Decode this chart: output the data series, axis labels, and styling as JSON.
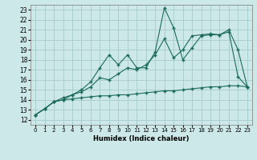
{
  "bg_color": "#cde8e8",
  "grid_color": "#aacece",
  "line_color": "#1a6b5a",
  "xlabel": "Humidex (Indice chaleur)",
  "xlim": [
    -0.5,
    23.5
  ],
  "ylim": [
    11.5,
    23.5
  ],
  "xticks": [
    0,
    1,
    2,
    3,
    4,
    5,
    6,
    7,
    8,
    9,
    10,
    11,
    12,
    13,
    14,
    15,
    16,
    17,
    18,
    19,
    20,
    21,
    22,
    23
  ],
  "yticks": [
    12,
    13,
    14,
    15,
    16,
    17,
    18,
    19,
    20,
    21,
    22,
    23
  ],
  "series": [
    [
      12.5,
      13.1,
      13.8,
      14.0,
      14.1,
      14.2,
      14.3,
      14.4,
      14.4,
      14.5,
      14.5,
      14.6,
      14.7,
      14.8,
      14.9,
      14.9,
      15.0,
      15.1,
      15.2,
      15.3,
      15.3,
      15.4,
      15.4,
      15.3
    ],
    [
      12.5,
      13.1,
      13.8,
      14.0,
      14.5,
      14.8,
      15.3,
      16.2,
      16.0,
      16.6,
      17.2,
      17.0,
      17.5,
      18.5,
      20.1,
      18.2,
      19.0,
      20.4,
      20.5,
      20.6,
      20.5,
      20.8,
      16.3,
      15.3
    ],
    [
      12.5,
      13.1,
      13.8,
      14.2,
      14.5,
      15.0,
      15.8,
      17.2,
      18.5,
      17.5,
      18.5,
      17.2,
      17.2,
      18.8,
      23.2,
      21.2,
      18.0,
      19.2,
      20.4,
      20.5,
      20.5,
      21.0,
      19.0,
      15.3
    ]
  ]
}
